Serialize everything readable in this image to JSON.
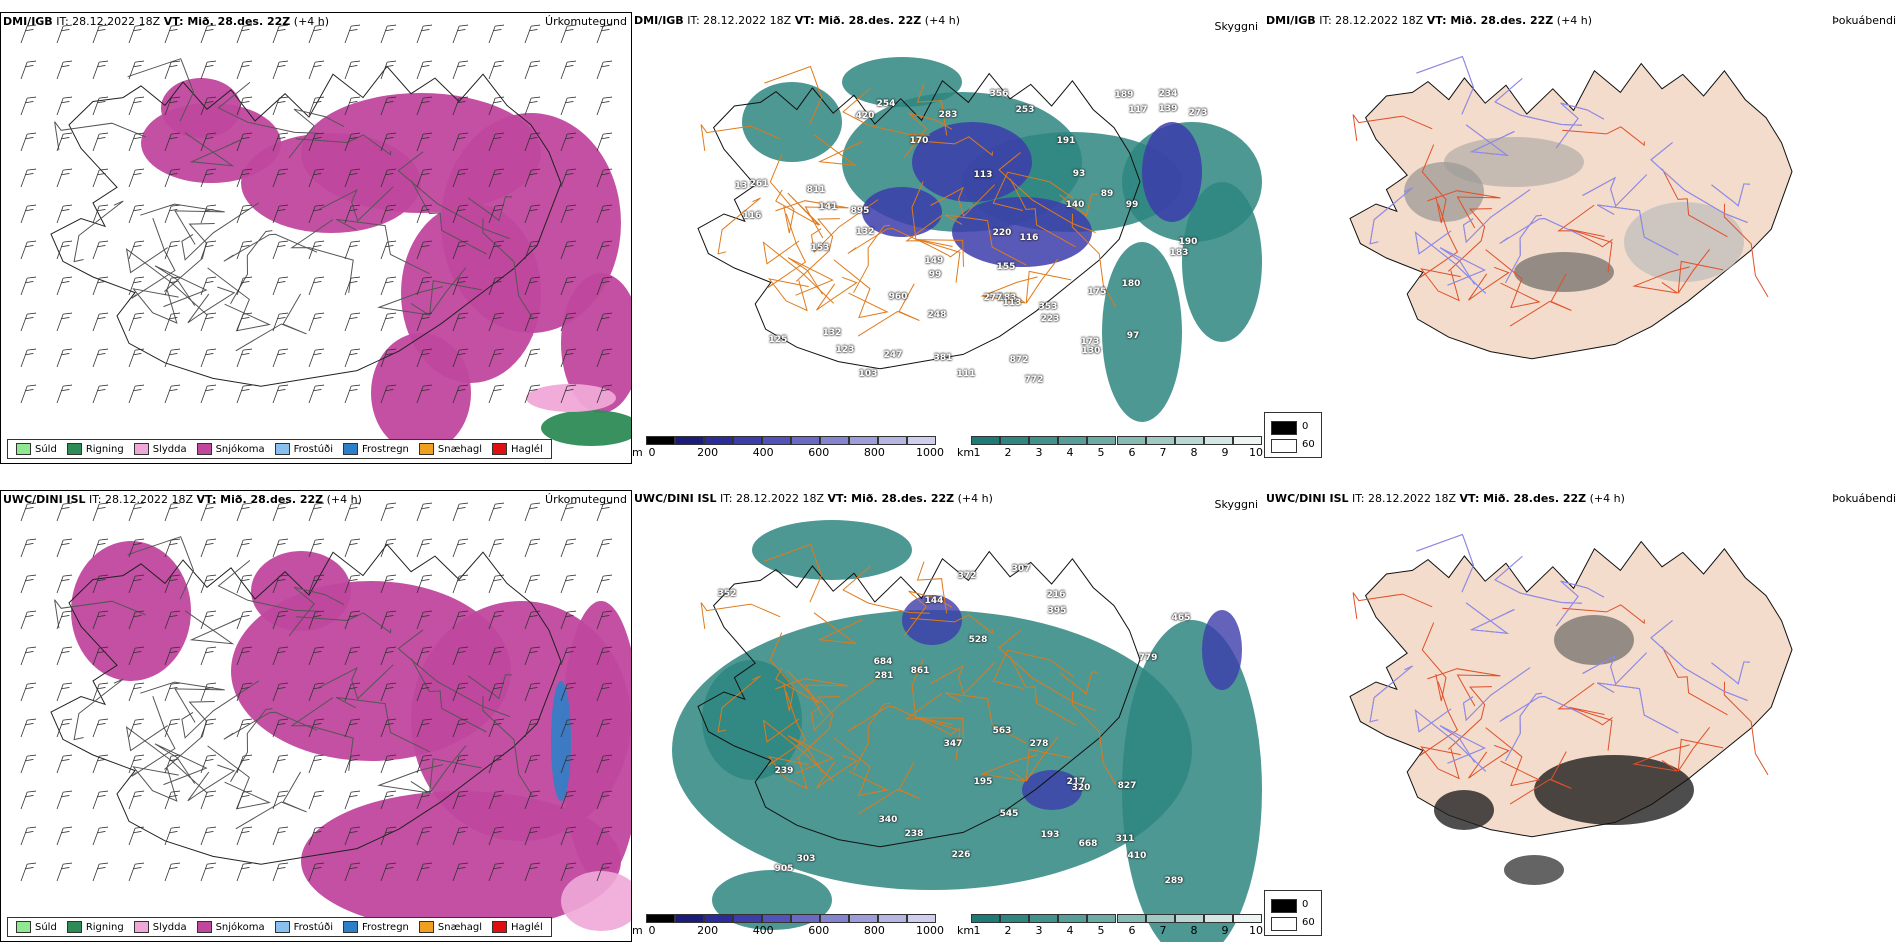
{
  "rows": [
    {
      "model": "DMI/IGB",
      "it_label": "IT:",
      "it_value": "28.12.2022 18Z",
      "vt_label": "VT: Mið. 28.des. 22Z",
      "lead": "(+4 h)",
      "numbers": [
        "772",
        "420",
        "132",
        "811",
        "89",
        "872",
        "183",
        "132",
        "99",
        "123",
        "125",
        "13",
        "149",
        "183",
        "140",
        "189",
        "116",
        "117",
        "175",
        "99",
        "173",
        "113",
        "103",
        "130",
        "116",
        "93",
        "153",
        "141",
        "111",
        "170",
        "223",
        "234",
        "191",
        "247",
        "254",
        "381",
        "356",
        "261",
        "190",
        "353",
        "283",
        "220",
        "273",
        "97",
        "253",
        "180",
        "277",
        "248",
        "155",
        "139",
        "960",
        "113",
        "895"
      ]
    },
    {
      "model": "UWC/DINI ISL",
      "it_label": "IT:",
      "it_value": "28.12.2022 18Z",
      "vt_label": "VT: Mið. 28.des. 22Z",
      "lead": "(+4 h)",
      "numbers": [
        "905",
        "827",
        "563",
        "195",
        "144",
        "307",
        "311",
        "216",
        "668",
        "340",
        "289",
        "281",
        "238",
        "372",
        "193",
        "684",
        "217",
        "239",
        "347",
        "465",
        "352",
        "303",
        "226",
        "278",
        "320",
        "395",
        "861",
        "528",
        "779",
        "545",
        "410"
      ]
    }
  ],
  "panel_titles": {
    "precip_type": "Úrkomutegund",
    "visibility": "Skyggni",
    "fog": "Þokuábendi"
  },
  "precip_legend": [
    {
      "label": "Súld",
      "color": "#90e890"
    },
    {
      "label": "Rigning",
      "color": "#2e8b57"
    },
    {
      "label": "Slydda",
      "color": "#f0a8d8"
    },
    {
      "label": "Snjókoma",
      "color": "#c0479e"
    },
    {
      "label": "Frostúði",
      "color": "#88c0f0"
    },
    {
      "label": "Frostregn",
      "color": "#2f7fc8"
    },
    {
      "label": "Snæhagl",
      "color": "#f0a020"
    },
    {
      "label": "Haglél",
      "color": "#e01010"
    }
  ],
  "height_bar": {
    "unit": "m",
    "ticks": [
      "0",
      "200",
      "400",
      "600",
      "800",
      "1000"
    ],
    "colors": [
      "#000000",
      "#1b1b7a",
      "#2b2b99",
      "#3c3cab",
      "#5252b8",
      "#6a6ac4",
      "#8484cf",
      "#9d9dd9",
      "#b6b6e3",
      "#cfcfed"
    ]
  },
  "km_bar": {
    "unit": "km",
    "ticks": [
      "1",
      "2",
      "3",
      "4",
      "5",
      "6",
      "7",
      "8",
      "9",
      "10"
    ],
    "colors": [
      "#1d7a75",
      "#2e8680",
      "#41928b",
      "#569e98",
      "#6daca5",
      "#86bab3",
      "#a0c9c3",
      "#bad8d3",
      "#d4e7e4",
      "#ecf5f4"
    ]
  },
  "fog_legend": {
    "dark": "0",
    "light": "60"
  }
}
